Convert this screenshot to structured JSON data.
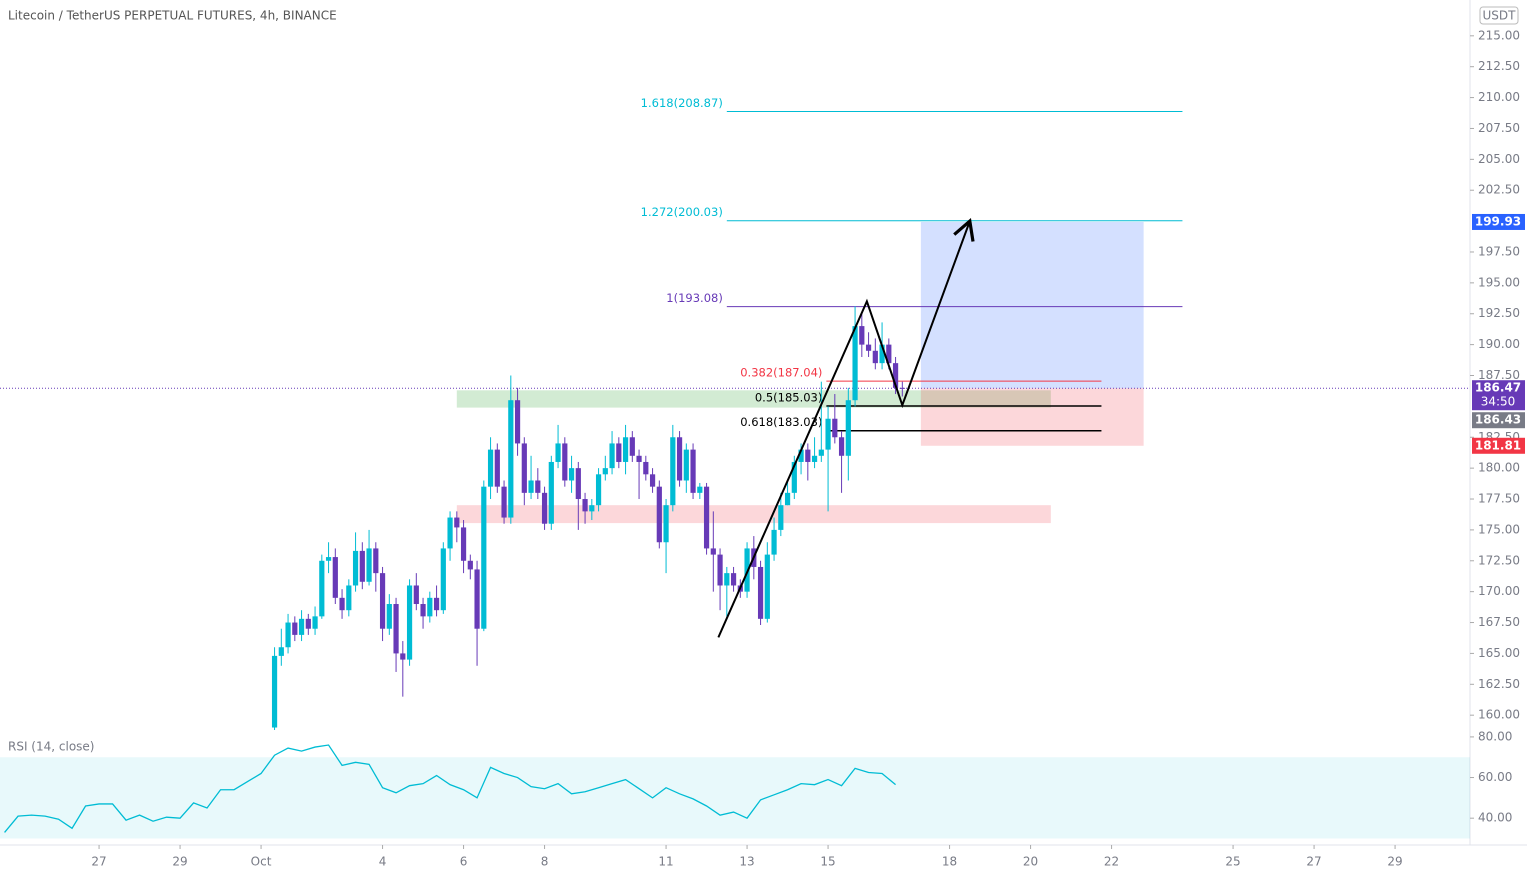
{
  "chart_data": {
    "type": "candlestick",
    "title": "Litecoin / TetherUS PERPETUAL FUTURES, 4h, BINANCE",
    "currency": "USDT",
    "x": [
      8,
      12,
      16,
      20,
      24,
      28,
      32,
      36,
      40,
      44,
      48,
      52,
      56,
      60,
      64,
      68,
      72,
      76,
      80,
      84,
      88,
      92,
      96,
      100,
      104,
      108,
      112,
      116,
      120,
      124,
      128,
      132,
      136,
      140,
      144,
      148,
      152,
      156,
      160,
      164,
      168,
      172,
      176,
      180,
      184,
      188,
      192,
      196,
      200,
      204,
      208,
      212,
      216,
      220,
      224,
      228,
      232,
      236,
      240,
      244,
      248,
      252,
      256,
      260,
      264,
      268,
      272,
      276,
      280,
      284,
      288,
      292,
      296,
      300,
      304,
      308,
      312,
      316,
      320,
      324,
      328,
      332,
      336,
      340,
      344,
      348,
      352,
      356,
      360,
      364,
      368,
      372,
      376,
      380
    ],
    "open": [
      159.0,
      164.8,
      165.5,
      167.5,
      166.5,
      167.8,
      167.0,
      168.0,
      172.5,
      172.8,
      169.5,
      168.5,
      170.5,
      173.3,
      170.8,
      173.5,
      171.5,
      167.0,
      169.0,
      165.0,
      164.5,
      170.5,
      169.0,
      168.0,
      169.5,
      168.5,
      173.5,
      176.0,
      175.2,
      172.5,
      171.8,
      167.0,
      178.5,
      181.5,
      178.5,
      176.0,
      185.5,
      182.0,
      178.0,
      179.0,
      178.0,
      175.5,
      180.5,
      182.0,
      179.0,
      180.0,
      177.5,
      176.5,
      177.0,
      179.5,
      180.0,
      182.0,
      180.5,
      182.5,
      181.0,
      180.5,
      179.5,
      178.5,
      174.0,
      177.0,
      182.5,
      179.0,
      181.5,
      178.0,
      178.5,
      173.5,
      173.0,
      170.5,
      171.5,
      170.5,
      170.0,
      173.5,
      172.0,
      167.8,
      173.0,
      175.0,
      177.0,
      178.0,
      180.5,
      181.5,
      180.5,
      181.0,
      181.5,
      184.0,
      182.5,
      181.0,
      185.5,
      191.5,
      190.0,
      189.5,
      188.5,
      190.0,
      188.5,
      186.5
    ],
    "high": [
      165.5,
      167,
      168.2,
      168,
      168.5,
      168.2,
      168.8,
      173,
      174,
      173.5,
      170.2,
      171,
      174.8,
      174,
      175,
      174,
      172,
      169.8,
      169.5,
      166,
      171,
      171.5,
      169.5,
      170,
      170.5,
      174,
      176.5,
      176.5,
      175.8,
      173,
      172.5,
      179,
      182.5,
      182,
      179,
      187.5,
      186.5,
      182.5,
      181,
      180,
      178.5,
      181,
      183.5,
      182.5,
      181,
      180.5,
      178,
      177.5,
      180,
      181,
      183,
      182.5,
      183.5,
      183,
      181.5,
      181,
      180,
      179,
      177.5,
      183.5,
      183,
      182,
      182,
      178.8,
      178.8,
      176.5,
      173.5,
      172,
      172,
      171,
      174,
      174.5,
      172.5,
      174,
      176,
      178,
      179,
      181,
      182,
      182,
      182.5,
      187,
      185,
      186,
      183,
      186.5,
      193.1,
      192.5,
      191,
      190.5,
      191.8,
      190.5,
      189,
      187
    ],
    "low": [
      158.8,
      164,
      165,
      166,
      166,
      166.5,
      166.5,
      167.8,
      171.5,
      169,
      167.8,
      168,
      170,
      170.2,
      170.5,
      170,
      166,
      166.5,
      163.5,
      161.5,
      164,
      168.5,
      167,
      167.5,
      168,
      168.2,
      172.5,
      174,
      171.5,
      171,
      164,
      166.8,
      177.5,
      178,
      175.5,
      175.5,
      181,
      177,
      177.5,
      177.5,
      175,
      175,
      180,
      178.5,
      178,
      175,
      175.5,
      175.8,
      176.5,
      179,
      179.5,
      180,
      179.5,
      180.5,
      177.5,
      179,
      178,
      173.5,
      171.5,
      176.5,
      178.5,
      178,
      177.5,
      177.5,
      173,
      170,
      168.5,
      168,
      170,
      169.5,
      169.5,
      171,
      167.3,
      167.5,
      172.5,
      174.5,
      177,
      177.5,
      179.5,
      179,
      180,
      180.5,
      176.5,
      182,
      178,
      179,
      185,
      189,
      189,
      188,
      188,
      188,
      186,
      185.8
    ],
    "close": [
      164.8,
      165.5,
      167.5,
      166.5,
      167.8,
      167.0,
      168.0,
      172.5,
      172.8,
      169.5,
      168.5,
      170.5,
      173.3,
      170.8,
      173.5,
      171.5,
      167.0,
      169.0,
      165.0,
      164.5,
      170.5,
      169.0,
      168.0,
      169.5,
      168.5,
      173.5,
      176.0,
      175.2,
      172.5,
      171.8,
      167.0,
      178.5,
      181.5,
      178.5,
      176.0,
      185.5,
      182.0,
      178.0,
      179.0,
      178.0,
      175.5,
      180.5,
      182.0,
      179.0,
      180.0,
      177.5,
      176.5,
      177.0,
      179.5,
      180.0,
      182.0,
      180.5,
      182.5,
      181.0,
      180.5,
      179.5,
      178.5,
      174.0,
      177.0,
      182.5,
      179.0,
      181.5,
      178.0,
      178.5,
      173.5,
      173.0,
      170.5,
      171.5,
      170.5,
      170.0,
      173.5,
      172.0,
      167.8,
      173.0,
      175.0,
      177.0,
      178.0,
      180.5,
      181.5,
      180.5,
      181.0,
      181.5,
      184.0,
      182.5,
      181.0,
      185.5,
      191.5,
      190.0,
      189.5,
      188.5,
      190.0,
      188.5,
      186.5,
      186.47
    ],
    "up_color": "#00bcd4",
    "down_color": "#673ab7",
    "xlim": [
      -154.7,
      716.4
    ],
    "xticks": [
      {
        "value": -96,
        "label": "27"
      },
      {
        "value": -48,
        "label": "29"
      },
      {
        "value": 0,
        "label": "Oct"
      },
      {
        "value": 72,
        "label": "4"
      },
      {
        "value": 120,
        "label": "6"
      },
      {
        "value": 168,
        "label": "8"
      },
      {
        "value": 240,
        "label": "11"
      },
      {
        "value": 288,
        "label": "13"
      },
      {
        "value": 336,
        "label": "15"
      },
      {
        "value": 408,
        "label": "18"
      },
      {
        "value": 456,
        "label": "20"
      },
      {
        "value": 504,
        "label": "22"
      },
      {
        "value": 576,
        "label": "25"
      },
      {
        "value": 624,
        "label": "27"
      },
      {
        "value": 672,
        "label": "29"
      }
    ],
    "ylim": [
      158.8,
      217.9
    ],
    "yticks": [
      {
        "value": 160,
        "label": "160.00"
      },
      {
        "value": 162.5,
        "label": "162.50"
      },
      {
        "value": 165,
        "label": "165.00"
      },
      {
        "value": 167.5,
        "label": "167.50"
      },
      {
        "value": 170,
        "label": "170.00"
      },
      {
        "value": 172.5,
        "label": "172.50"
      },
      {
        "value": 175,
        "label": "175.00"
      },
      {
        "value": 177.5,
        "label": "177.50"
      },
      {
        "value": 180,
        "label": "180.00"
      },
      {
        "value": 182.5,
        "label": "182.50"
      },
      {
        "value": 187.5,
        "label": "187.50"
      },
      {
        "value": 190,
        "label": "190.00"
      },
      {
        "value": 192.5,
        "label": "192.50"
      },
      {
        "value": 195,
        "label": "195.00"
      },
      {
        "value": 197.5,
        "label": "197.50"
      },
      {
        "value": 202.5,
        "label": "202.50"
      },
      {
        "value": 205,
        "label": "205.00"
      },
      {
        "value": 207.5,
        "label": "207.50"
      },
      {
        "value": 210,
        "label": "210.00"
      },
      {
        "value": 212.5,
        "label": "212.50"
      },
      {
        "value": 215,
        "label": "215.00"
      }
    ],
    "last_price": {
      "value": 186.47,
      "label": "186.47",
      "countdown": "34:50",
      "color": "#673ab7"
    },
    "price_labels": [
      {
        "value": 199.93,
        "label": "199.93",
        "color": "#2962ff"
      },
      {
        "value": 186.43,
        "label": "186.43",
        "color": "#787b86"
      },
      {
        "value": 181.81,
        "label": "181.81",
        "color": "#f23645"
      }
    ],
    "fib_levels": [
      {
        "label": "1.618(208.87)",
        "value": 208.87,
        "from": 276,
        "to": 546,
        "color": "#00bcd4"
      },
      {
        "label": "1.272(200.03)",
        "value": 200.03,
        "from": 276,
        "to": 546,
        "color": "#00bcd4"
      },
      {
        "label": "1(193.08)",
        "value": 193.08,
        "from": 276,
        "to": 546,
        "color": "#673ab7"
      },
      {
        "label": "0.382(187.04)",
        "value": 187.04,
        "from": 335,
        "to": 498,
        "color": "#f23645"
      },
      {
        "label": "0.5(185.03)",
        "value": 185.03,
        "from": 335,
        "to": 498,
        "color": "#000000"
      },
      {
        "label": "0.618(183.03)",
        "value": 183.03,
        "from": 335,
        "to": 498,
        "color": "#000000"
      }
    ],
    "zones": [
      {
        "top": 186.3,
        "bottom": 184.9,
        "from": 116,
        "to": 468,
        "color": "rgba(76,175,80,0.25)"
      },
      {
        "top": 177.0,
        "bottom": 175.55,
        "from": 116,
        "to": 468,
        "color": "rgba(242,54,69,0.2)"
      }
    ],
    "position": {
      "entry": 186.47,
      "target": 199.93,
      "stop": 181.81,
      "from": 391,
      "to": 523,
      "target_color": "rgba(41,98,255,0.2)",
      "stop_color": "rgba(242,54,69,0.2)"
    },
    "path": {
      "x": [
        271,
        359,
        380,
        420
      ],
      "y": [
        166.3,
        193.5,
        185.1,
        200.0
      ]
    },
    "rsi": {
      "title": "RSI (14, close)",
      "color": "#00bcd4",
      "band": [
        30,
        70
      ],
      "band_color": "rgba(0,188,212,0.09)",
      "x": [
        -152,
        -144,
        -136,
        -128,
        -120,
        -112,
        -104,
        -96,
        -88,
        -80,
        -72,
        -64,
        -56,
        -48,
        -40,
        -32,
        -24,
        -16,
        -8,
        0,
        8,
        16,
        24,
        32,
        40,
        48,
        56,
        64,
        72,
        80,
        88,
        96,
        104,
        112,
        120,
        128,
        136,
        144,
        152,
        160,
        168,
        176,
        184,
        192,
        200,
        208,
        216,
        224,
        232,
        240,
        248,
        256,
        264,
        272,
        280,
        288,
        296,
        304,
        312,
        320,
        328,
        336,
        344,
        352,
        360,
        368,
        376
      ],
      "values": [
        33,
        41,
        41.5,
        41,
        39.5,
        35,
        46,
        47,
        47,
        39,
        41.5,
        38.5,
        40.5,
        40,
        47.5,
        45,
        54,
        54,
        58,
        62,
        71,
        74.5,
        73,
        75,
        76,
        66,
        67.5,
        66.5,
        55,
        52.5,
        56,
        57,
        61,
        56.5,
        54,
        50,
        65,
        62,
        60,
        55.5,
        54.5,
        57,
        52,
        53,
        55,
        57,
        59,
        54.5,
        50,
        55,
        52,
        49.5,
        46,
        41.5,
        43,
        40,
        49,
        51.5,
        54,
        57,
        56.5,
        59,
        56,
        64.5,
        62.5,
        62,
        56.5
      ],
      "ylim": [
        26.8,
        83.4
      ],
      "yticks": [
        {
          "value": 40,
          "label": "40.00"
        },
        {
          "value": 60,
          "label": "60.00"
        },
        {
          "value": 80,
          "label": "80.00"
        }
      ]
    }
  }
}
